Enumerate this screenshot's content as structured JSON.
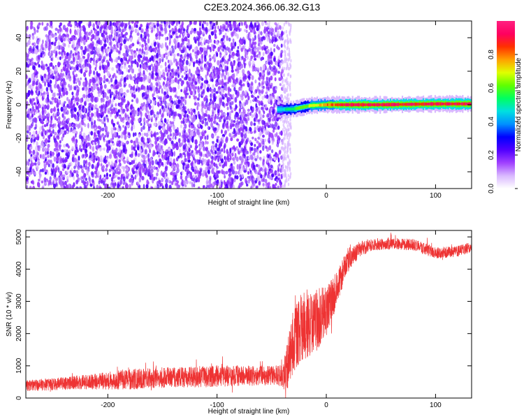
{
  "title": "C2E3.2024.366.06.32.G13",
  "chart_data": [
    {
      "type": "heatmap",
      "xlabel": "Height of straight line (km)",
      "ylabel": "Frequency (Hz)",
      "xlim": [
        -275,
        133
      ],
      "ylim": [
        -50,
        50
      ],
      "x_ticks": [
        "-200",
        "-100",
        "0",
        "100"
      ],
      "x_tick_values": [
        -200,
        -100,
        0,
        100
      ],
      "y_ticks": [
        "-40",
        "-20",
        "0",
        "20",
        "40"
      ],
      "y_tick_values": [
        -40,
        -20,
        0,
        20,
        40
      ],
      "noise_region_x": [
        -275,
        -40
      ],
      "carrier_start_x": -45,
      "carrier_center_hz": [
        {
          "x": -75,
          "y": -1.5
        },
        {
          "x": -50,
          "y": -3
        },
        {
          "x": -30,
          "y": -2.5
        },
        {
          "x": -15,
          "y": -0.5
        },
        {
          "x": 0,
          "y": 0
        },
        {
          "x": 50,
          "y": 0
        },
        {
          "x": 100,
          "y": 0.5
        },
        {
          "x": 133,
          "y": 0.5
        }
      ],
      "colorbar": {
        "label": "Normalized spectral amplitude",
        "range": [
          0,
          1
        ],
        "ticks": [
          "0.0",
          "0.2",
          "0.4",
          "0.6",
          "0.8"
        ],
        "tick_values": [
          0.0,
          0.2,
          0.4,
          0.6,
          0.8
        ],
        "colors": [
          "#ffffff",
          "#d9b8ff",
          "#a040ff",
          "#5000ff",
          "#0000ff",
          "#0090ff",
          "#00e0e0",
          "#00ff60",
          "#60ff00",
          "#e0ff00",
          "#ffa000",
          "#ff3000",
          "#ff0060",
          "#ff2080"
        ]
      }
    },
    {
      "type": "line",
      "xlabel": "Height of straight line (km)",
      "ylabel": "SNR (10 * v/v)",
      "xlim": [
        -275,
        133
      ],
      "ylim": [
        0,
        5200
      ],
      "x_ticks": [
        "-200",
        "-100",
        "0",
        "100"
      ],
      "x_tick_values": [
        -200,
        -100,
        0,
        100
      ],
      "y_ticks": [
        "0",
        "1000",
        "2000",
        "3000",
        "4000",
        "5000"
      ],
      "y_tick_values": [
        0,
        1000,
        2000,
        3000,
        4000,
        5000
      ],
      "line_color": "#ee3333",
      "series": [
        {
          "x": [
            -275,
            -250,
            -225,
            -200,
            -175,
            -150,
            -125,
            -100,
            -75,
            -50,
            -40,
            -37,
            -30,
            -20,
            -10,
            0,
            10,
            20,
            30,
            40,
            60,
            80,
            100,
            120,
            133
          ],
          "y": [
            380,
            430,
            490,
            540,
            590,
            630,
            650,
            680,
            690,
            700,
            690,
            800,
            1800,
            2300,
            2400,
            2650,
            3400,
            4300,
            4600,
            4750,
            4800,
            4750,
            4500,
            4550,
            4700
          ],
          "spread": [
            180,
            190,
            220,
            280,
            320,
            330,
            330,
            340,
            320,
            310,
            330,
            700,
            1000,
            1100,
            1000,
            800,
            550,
            350,
            250,
            200,
            180,
            180,
            180,
            170,
            170
          ]
        }
      ]
    }
  ]
}
